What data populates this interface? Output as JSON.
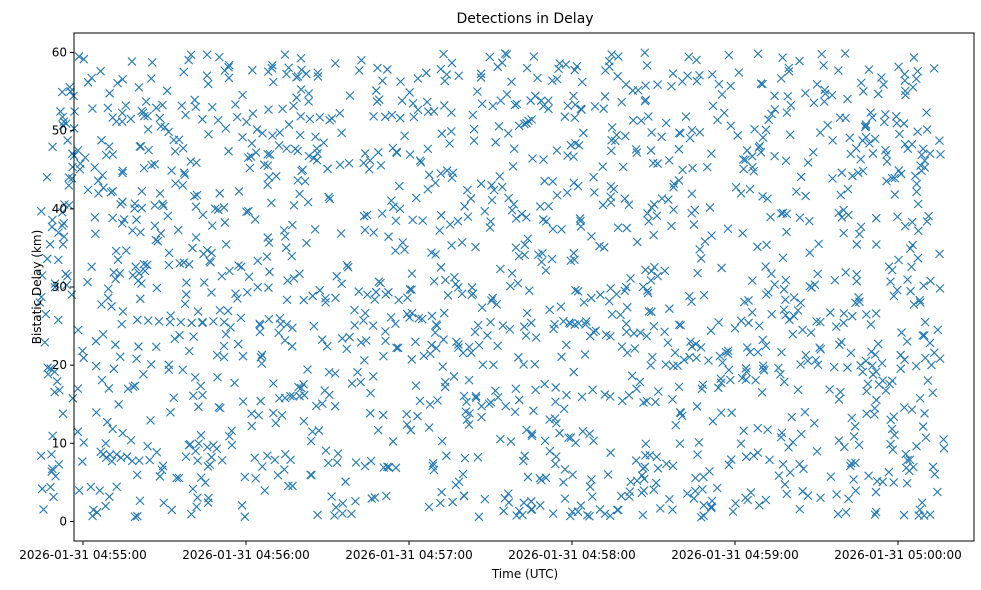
{
  "chart_data": {
    "type": "scatter",
    "title": "Detections in Delay",
    "xlabel": "Time (UTC)",
    "ylabel": "Bistatic Delay (km)",
    "marker": "x",
    "color": "#1f77b4",
    "grid": false,
    "xlim_seconds_from_tick0": [
      -24,
      325
    ],
    "x_ticks": [
      "2026-01-31 04:55:00",
      "2026-01-31 04:56:00",
      "2026-01-31 04:57:00",
      "2026-01-31 04:58:00",
      "2026-01-31 04:59:00",
      "2026-01-31 05:00:00"
    ],
    "ylim": [
      -2.5,
      62.5
    ],
    "y_ticks": [
      0,
      10,
      20,
      30,
      40,
      50,
      60
    ],
    "series": [
      {
        "x": [
          "2026-01-31 04:55:20",
          "2026-01-31 04:55:24",
          "2026-01-31 04:55:28",
          "2026-01-31 04:55:32",
          "2026-01-31 04:55:36",
          "2026-01-31 04:55:40",
          "2026-01-31 04:55:44",
          "2026-01-31 04:55:48",
          "2026-01-31 04:55:52",
          "2026-01-31 04:56:05",
          "2026-01-31 04:56:15",
          "2026-01-31 04:56:25",
          "2026-01-31 04:56:40",
          "2026-01-31 04:56:55",
          "2026-01-31 04:57:10",
          "2026-01-31 04:57:30",
          "2026-01-31 04:57:45",
          "2026-01-31 04:58:05",
          "2026-01-31 04:58:20",
          "2026-01-31 04:58:40",
          "2026-01-31 04:59:05",
          "2026-01-31 04:59:20",
          "2026-01-31 04:59:30",
          "2026-01-31 04:59:40",
          "2026-01-31 04:59:50",
          "2026-01-31 05:00:10"
        ],
        "y": [
          25.8,
          25.7,
          25.6,
          25.5,
          25.5,
          25.4,
          25.5,
          25.6,
          25.5,
          25.3,
          25.2,
          25.0,
          25.1,
          25.3,
          25.2,
          25.5,
          25.4,
          25.2,
          25.3,
          25.1,
          25.4,
          25.8,
          25.6,
          25.4,
          25.2,
          25.5
        ]
      }
    ],
    "note_on_density": "Approximately 1,600 detections are uniformly scattered over the full time range (~04:54:36 to 05:00:25) and delay range 0–60 km."
  }
}
